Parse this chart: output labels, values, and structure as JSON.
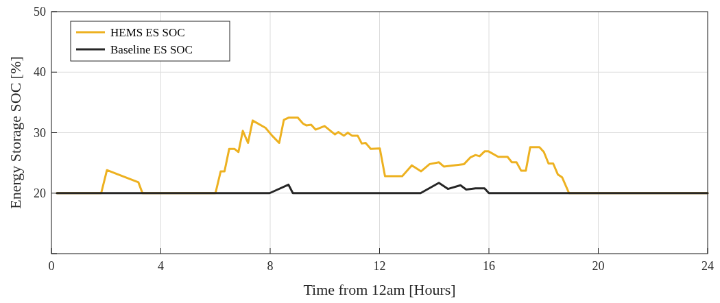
{
  "chart_data": {
    "type": "line",
    "xlabel": "Time from 12am [Hours]",
    "ylabel": "Energy Storage SOC [%]",
    "xlim": [
      0,
      24
    ],
    "xticks": [
      0,
      4,
      8,
      12,
      16,
      20,
      24
    ],
    "ylim": [
      10,
      50
    ],
    "yticks": [
      {
        "value": 10,
        "label": null
      },
      20,
      30,
      40,
      50
    ],
    "grid": true,
    "legend": "top left",
    "line_style": "solid",
    "marker": "none",
    "series": [
      {
        "name": "HEMS ES SOC",
        "color": "#edb120",
        "x": [
          0.2,
          1.82,
          2.03,
          3.18,
          3.33,
          6.0,
          6.19,
          6.33,
          6.5,
          6.7,
          6.84,
          7.0,
          7.19,
          7.36,
          7.83,
          8.07,
          8.33,
          8.5,
          8.69,
          9.01,
          9.2,
          9.32,
          9.5,
          9.66,
          9.99,
          10.37,
          10.49,
          10.7,
          10.84,
          10.99,
          11.2,
          11.35,
          11.49,
          11.68,
          12.01,
          12.2,
          12.83,
          13.18,
          13.52,
          13.83,
          14.17,
          14.35,
          15.09,
          15.32,
          15.51,
          15.66,
          15.84,
          15.99,
          16.34,
          16.68,
          16.84,
          17.01,
          17.18,
          17.35,
          17.51,
          17.85,
          18.01,
          18.18,
          18.35,
          18.52,
          18.68,
          18.93,
          24
        ],
        "values": [
          20,
          20,
          23.8,
          21.8,
          20,
          20,
          23.6,
          23.6,
          27.3,
          27.3,
          26.8,
          30.3,
          28.3,
          32.0,
          30.8,
          29.5,
          28.3,
          32.1,
          32.5,
          32.5,
          31.5,
          31.2,
          31.3,
          30.5,
          31.1,
          29.7,
          30.1,
          29.5,
          30.0,
          29.5,
          29.5,
          28.2,
          28.3,
          27.3,
          27.4,
          22.8,
          22.8,
          24.6,
          23.6,
          24.8,
          25.1,
          24.4,
          24.8,
          25.9,
          26.3,
          26.1,
          26.9,
          26.9,
          26.0,
          26.0,
          25.1,
          25.1,
          23.7,
          23.7,
          27.6,
          27.6,
          26.8,
          24.9,
          24.9,
          23.1,
          22.6,
          20,
          20
        ]
      },
      {
        "name": "Baseline ES SOC",
        "color": "#262626",
        "x": [
          0.2,
          7.98,
          8.67,
          8.83,
          13.5,
          14.17,
          14.5,
          14.96,
          15.17,
          15.51,
          15.84,
          16.0,
          24
        ],
        "values": [
          20,
          20,
          21.4,
          20,
          20,
          21.7,
          20.7,
          21.3,
          20.6,
          20.8,
          20.8,
          20,
          20
        ]
      }
    ]
  }
}
